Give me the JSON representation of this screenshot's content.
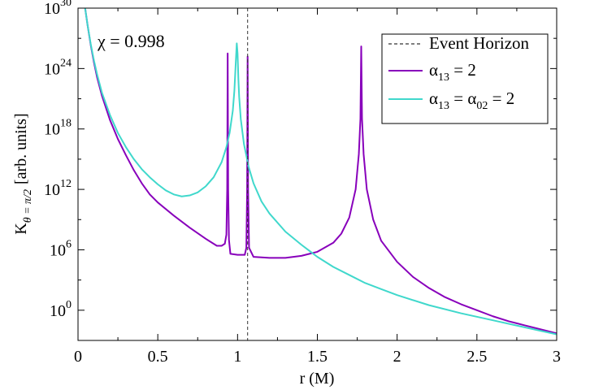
{
  "chart_data": {
    "type": "line",
    "title": "",
    "annotation": "χ = 0.998",
    "xlabel": {
      "main": "r (M)"
    },
    "ylabel": {
      "main": "K",
      "sub": "θ = π/2",
      "suffix": "[arb. units]"
    },
    "xlim": [
      0,
      3
    ],
    "ylim_log10": [
      -3,
      30
    ],
    "y_scale": "log",
    "x_ticks": [
      {
        "value": 0,
        "label": "0"
      },
      {
        "value": 0.5,
        "label": "0.5"
      },
      {
        "value": 1,
        "label": "1"
      },
      {
        "value": 1.5,
        "label": "1.5"
      },
      {
        "value": 2,
        "label": "2"
      },
      {
        "value": 2.5,
        "label": "2.5"
      },
      {
        "value": 3,
        "label": "3"
      }
    ],
    "y_ticks": [
      {
        "log10": 0,
        "base": "10",
        "exp": "0"
      },
      {
        "log10": 6,
        "base": "10",
        "exp": "6"
      },
      {
        "log10": 12,
        "base": "10",
        "exp": "12"
      },
      {
        "log10": 18,
        "base": "10",
        "exp": "18"
      },
      {
        "log10": 24,
        "base": "10",
        "exp": "24"
      },
      {
        "log10": 30,
        "base": "10",
        "exp": "30"
      }
    ],
    "event_horizon_r": 1.063,
    "legend": {
      "placement": "top-right",
      "entries": [
        {
          "label": "Event Horizon",
          "style": "dashed",
          "color": "#333333"
        },
        {
          "label_parts": [
            "α",
            "13",
            " = 2"
          ],
          "color": "#8800bb"
        },
        {
          "label_parts": [
            "α",
            "13",
            " = α",
            "02",
            " = 2"
          ],
          "color": "#40d8cc"
        }
      ]
    },
    "series": [
      {
        "color": "#8800bb",
        "points": [
          [
            0.04,
            30.5
          ],
          [
            0.06,
            28.3
          ],
          [
            0.08,
            26.3
          ],
          [
            0.1,
            24.6
          ],
          [
            0.12,
            23.1
          ],
          [
            0.15,
            21.3
          ],
          [
            0.2,
            18.9
          ],
          [
            0.25,
            17.0
          ],
          [
            0.3,
            15.4
          ],
          [
            0.35,
            13.9
          ],
          [
            0.4,
            12.6
          ],
          [
            0.45,
            11.5
          ],
          [
            0.5,
            10.7
          ],
          [
            0.6,
            9.4
          ],
          [
            0.7,
            8.2
          ],
          [
            0.8,
            7.1
          ],
          [
            0.87,
            6.4
          ],
          [
            0.9,
            6.4
          ],
          [
            0.92,
            6.6
          ],
          [
            0.93,
            7.5
          ],
          [
            0.935,
            12.0
          ],
          [
            0.938,
            25.5
          ],
          [
            0.941,
            12.0
          ],
          [
            0.946,
            7.0
          ],
          [
            0.955,
            5.6
          ],
          [
            1.0,
            5.5
          ],
          [
            1.045,
            5.5
          ],
          [
            1.055,
            6.2
          ],
          [
            1.06,
            12.0
          ],
          [
            1.063,
            25.2
          ],
          [
            1.066,
            12.0
          ],
          [
            1.072,
            6.2
          ],
          [
            1.1,
            5.3
          ],
          [
            1.2,
            5.2
          ],
          [
            1.3,
            5.2
          ],
          [
            1.4,
            5.4
          ],
          [
            1.5,
            5.8
          ],
          [
            1.6,
            6.7
          ],
          [
            1.65,
            7.6
          ],
          [
            1.7,
            9.2
          ],
          [
            1.74,
            12.0
          ],
          [
            1.76,
            15.5
          ],
          [
            1.77,
            19.0
          ],
          [
            1.775,
            26.2
          ],
          [
            1.78,
            19.0
          ],
          [
            1.79,
            15.5
          ],
          [
            1.81,
            12.0
          ],
          [
            1.85,
            9.0
          ],
          [
            1.9,
            6.9
          ],
          [
            2.0,
            4.8
          ],
          [
            2.1,
            3.3
          ],
          [
            2.2,
            2.2
          ],
          [
            2.3,
            1.3
          ],
          [
            2.4,
            0.6
          ],
          [
            2.5,
            0.0
          ],
          [
            2.6,
            -0.6
          ],
          [
            2.7,
            -1.1
          ],
          [
            2.8,
            -1.5
          ],
          [
            2.9,
            -1.9
          ],
          [
            3.0,
            -2.3
          ]
        ]
      },
      {
        "color": "#40d8cc",
        "points": [
          [
            0.04,
            30.5
          ],
          [
            0.06,
            28.3
          ],
          [
            0.08,
            26.4
          ],
          [
            0.1,
            24.8
          ],
          [
            0.12,
            23.4
          ],
          [
            0.15,
            21.6
          ],
          [
            0.2,
            19.4
          ],
          [
            0.25,
            17.6
          ],
          [
            0.3,
            16.2
          ],
          [
            0.35,
            15.0
          ],
          [
            0.4,
            14.0
          ],
          [
            0.45,
            13.2
          ],
          [
            0.5,
            12.5
          ],
          [
            0.55,
            11.9
          ],
          [
            0.6,
            11.5
          ],
          [
            0.65,
            11.3
          ],
          [
            0.7,
            11.4
          ],
          [
            0.75,
            11.7
          ],
          [
            0.8,
            12.3
          ],
          [
            0.85,
            13.2
          ],
          [
            0.9,
            14.7
          ],
          [
            0.93,
            16.2
          ],
          [
            0.95,
            17.6
          ],
          [
            0.97,
            19.8
          ],
          [
            0.98,
            21.8
          ],
          [
            0.99,
            25.0
          ],
          [
            0.995,
            26.5
          ],
          [
            1.0,
            25.5
          ],
          [
            1.005,
            23.0
          ],
          [
            1.01,
            21.2
          ],
          [
            1.02,
            19.0
          ],
          [
            1.04,
            16.5
          ],
          [
            1.07,
            14.2
          ],
          [
            1.1,
            12.6
          ],
          [
            1.15,
            10.8
          ],
          [
            1.2,
            9.6
          ],
          [
            1.3,
            7.8
          ],
          [
            1.4,
            6.5
          ],
          [
            1.5,
            5.3
          ],
          [
            1.6,
            4.3
          ],
          [
            1.7,
            3.5
          ],
          [
            1.8,
            2.7
          ],
          [
            1.9,
            2.1
          ],
          [
            2.0,
            1.5
          ],
          [
            2.2,
            0.5
          ],
          [
            2.4,
            -0.3
          ],
          [
            2.6,
            -1.0
          ],
          [
            2.8,
            -1.7
          ],
          [
            3.0,
            -2.4
          ]
        ]
      }
    ]
  }
}
